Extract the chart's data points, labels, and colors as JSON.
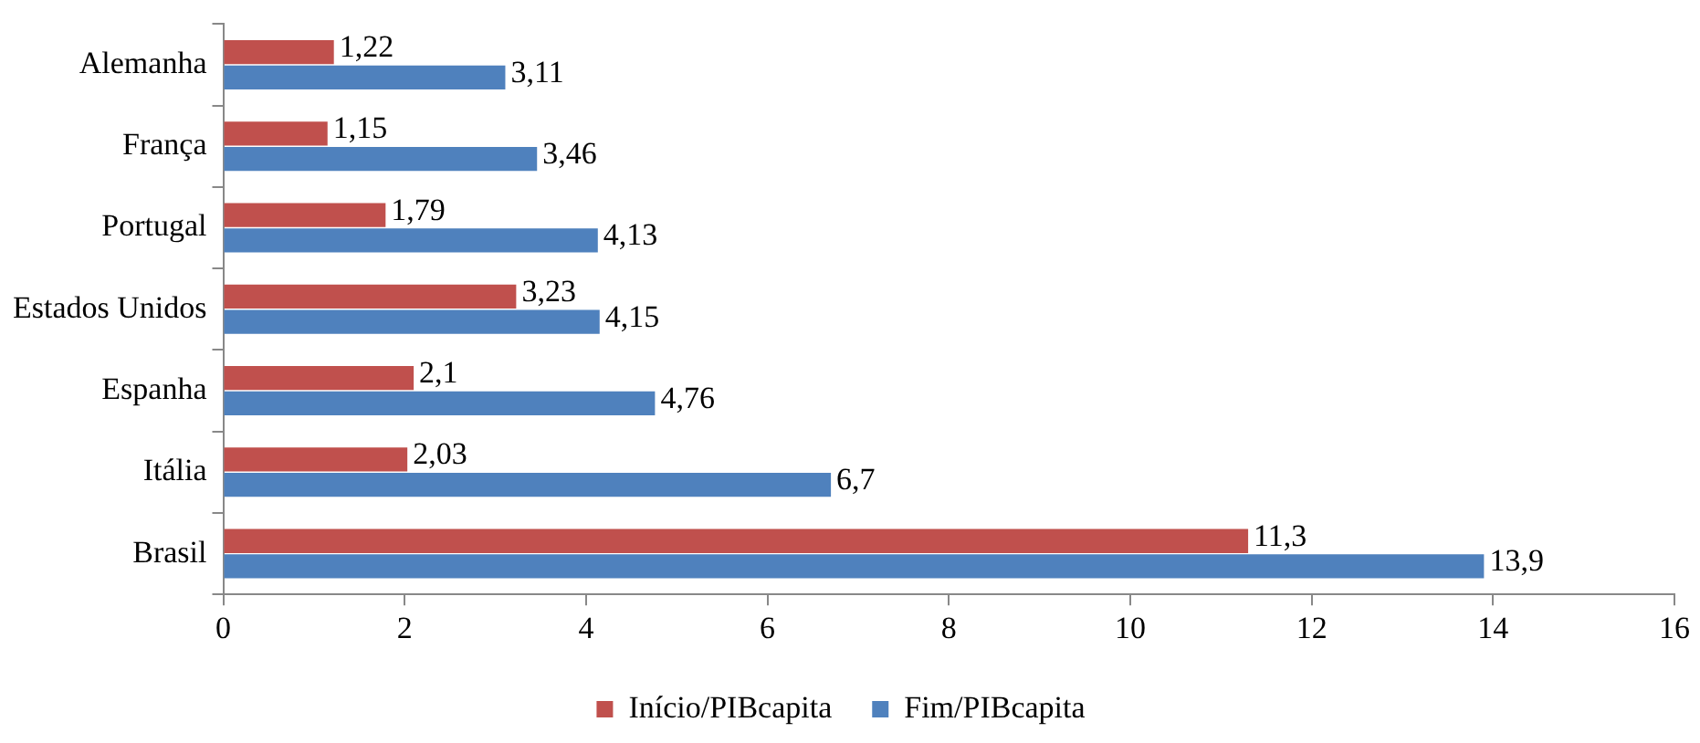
{
  "chart_data": {
    "type": "bar",
    "orientation": "horizontal",
    "categories": [
      "Alemanha",
      "França",
      "Portugal",
      "Estados Unidos",
      "Espanha",
      "Itália",
      "Brasil"
    ],
    "series": [
      {
        "name": "Início/PIBcapita",
        "color": "#c0504d",
        "values": [
          1.22,
          1.15,
          1.79,
          3.23,
          2.1,
          2.03,
          11.3
        ],
        "value_labels": [
          "1,22",
          "1,15",
          "1,79",
          "3,23",
          "2,1",
          "2,03",
          "11,3"
        ]
      },
      {
        "name": "Fim/PIBcapita",
        "color": "#4f81bd",
        "values": [
          3.11,
          3.46,
          4.13,
          4.15,
          4.76,
          6.7,
          13.9
        ],
        "value_labels": [
          "3,11",
          "3,46",
          "4,13",
          "4,15",
          "4,76",
          "6,7",
          "13,9"
        ]
      }
    ],
    "xlim": [
      0,
      16
    ],
    "xticks": [
      0,
      2,
      4,
      6,
      8,
      10,
      12,
      14,
      16
    ],
    "grid": false,
    "legend": "bottom"
  }
}
